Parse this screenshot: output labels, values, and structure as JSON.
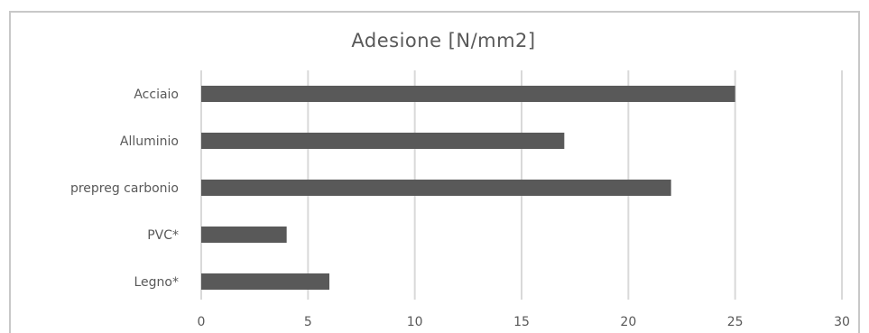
{
  "chart_data": {
    "type": "bar",
    "orientation": "horizontal",
    "title": "Adesione [N/mm2]",
    "xlabel": "",
    "ylabel": "",
    "categories": [
      "Acciaio",
      "Alluminio",
      "prepreg carbonio",
      "PVC*",
      "Legno*"
    ],
    "values": [
      25,
      17,
      22,
      4,
      6
    ],
    "xlim": [
      0,
      30
    ],
    "xticks": [
      "0",
      "5",
      "10",
      "15",
      "20",
      "25",
      "30"
    ],
    "grid": "vertical",
    "legend": "none",
    "colors": {
      "bar": "#595959",
      "grid": "#d9d9d9",
      "label": "#595959",
      "frame": "#c8c8c8"
    }
  }
}
